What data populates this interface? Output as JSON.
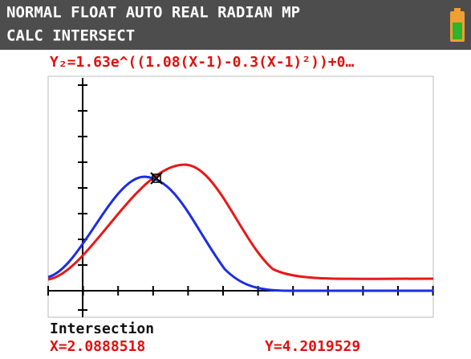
{
  "status_bar": {
    "mode_line": "NORMAL FLOAT AUTO REAL RADIAN MP",
    "menu_line": "CALC INTERSECT"
  },
  "equation": "Y₂=1.63e^((1.08(X-1)-0.3(X-1)²))+0…",
  "result": {
    "title": "Intersection",
    "x": "X=2.0888518",
    "y": "Y=4.2019529"
  }
}
